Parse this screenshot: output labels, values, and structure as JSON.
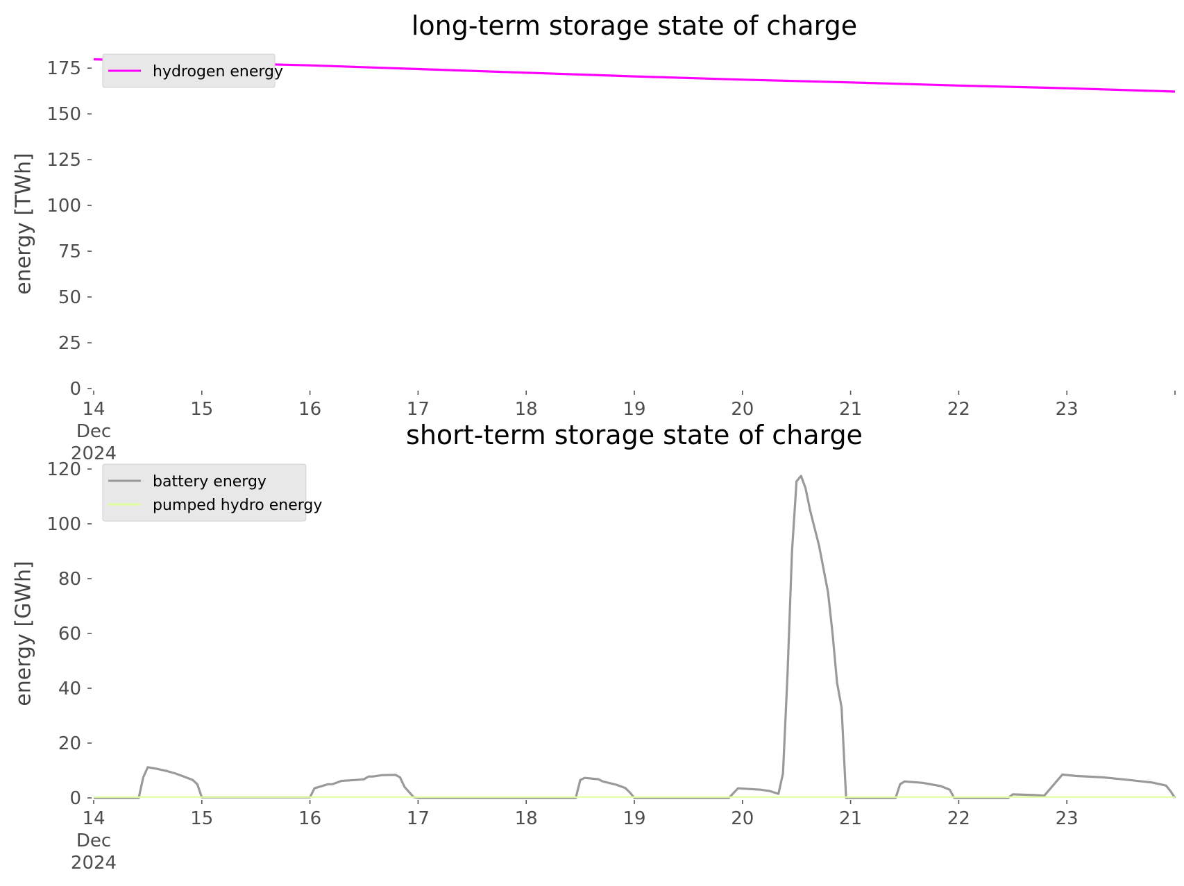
{
  "chart_data": [
    {
      "type": "line",
      "title": "long-term storage state of charge",
      "xlabel": "",
      "ylabel": "energy [TWh]",
      "xlim": [
        "2024-12-14",
        "2024-12-24"
      ],
      "ylim": [
        0,
        180
      ],
      "x_ticks": [
        {
          "date": "2024-12-14",
          "label": [
            "14",
            "Dec",
            "2024"
          ]
        },
        {
          "date": "2024-12-15",
          "label": [
            "15"
          ]
        },
        {
          "date": "2024-12-16",
          "label": [
            "16"
          ]
        },
        {
          "date": "2024-12-17",
          "label": [
            "17"
          ]
        },
        {
          "date": "2024-12-18",
          "label": [
            "18"
          ]
        },
        {
          "date": "2024-12-19",
          "label": [
            "19"
          ]
        },
        {
          "date": "2024-12-20",
          "label": [
            "20"
          ]
        },
        {
          "date": "2024-12-21",
          "label": [
            "21"
          ]
        },
        {
          "date": "2024-12-22",
          "label": [
            "22"
          ]
        },
        {
          "date": "2024-12-23",
          "label": [
            "23"
          ]
        },
        {
          "date": "2024-12-24",
          "label": []
        }
      ],
      "y_ticks": [
        {
          "value": 0,
          "label": "0"
        },
        {
          "value": 25,
          "label": "25"
        },
        {
          "value": 50,
          "label": "50"
        },
        {
          "value": 75,
          "label": "75"
        },
        {
          "value": 100,
          "label": "100"
        },
        {
          "value": 125,
          "label": "125"
        },
        {
          "value": 150,
          "label": "150"
        },
        {
          "value": 175,
          "label": "175"
        }
      ],
      "grid": false,
      "legend_position": "top-left",
      "series": [
        {
          "name": "hydrogen energy",
          "color": "#ff00ff",
          "points": [
            [
              "2024-12-14 00:00",
              179.8
            ],
            [
              "2024-12-15 00:00",
              178.0
            ],
            [
              "2024-12-16 00:00",
              176.5
            ],
            [
              "2024-12-17 00:00",
              174.5
            ],
            [
              "2024-12-18 00:00",
              172.5
            ],
            [
              "2024-12-19 00:00",
              170.5
            ],
            [
              "2024-12-20 00:00",
              168.7
            ],
            [
              "2024-12-21 00:00",
              167.2
            ],
            [
              "2024-12-22 00:00",
              165.5
            ],
            [
              "2024-12-23 00:00",
              164.0
            ],
            [
              "2024-12-24 00:00",
              162.2
            ]
          ]
        }
      ]
    },
    {
      "type": "line",
      "title": "short-term storage state of charge",
      "xlabel": "",
      "ylabel": "energy [GWh]",
      "xlim": [
        "2024-12-14",
        "2024-12-24"
      ],
      "ylim": [
        0,
        120
      ],
      "x_ticks": [
        {
          "date": "2024-12-14",
          "label": [
            "14",
            "Dec",
            "2024"
          ]
        },
        {
          "date": "2024-12-15",
          "label": [
            "15"
          ]
        },
        {
          "date": "2024-12-16",
          "label": [
            "16"
          ]
        },
        {
          "date": "2024-12-17",
          "label": [
            "17"
          ]
        },
        {
          "date": "2024-12-18",
          "label": [
            "18"
          ]
        },
        {
          "date": "2024-12-19",
          "label": [
            "19"
          ]
        },
        {
          "date": "2024-12-20",
          "label": [
            "20"
          ]
        },
        {
          "date": "2024-12-21",
          "label": [
            "21"
          ]
        },
        {
          "date": "2024-12-22",
          "label": [
            "22"
          ]
        },
        {
          "date": "2024-12-23",
          "label": [
            "23"
          ]
        }
      ],
      "y_ticks": [
        {
          "value": 0,
          "label": "0"
        },
        {
          "value": 20,
          "label": "20"
        },
        {
          "value": 40,
          "label": "40"
        },
        {
          "value": 60,
          "label": "60"
        },
        {
          "value": 80,
          "label": "80"
        },
        {
          "value": 100,
          "label": "100"
        },
        {
          "value": 120,
          "label": "120"
        }
      ],
      "grid": false,
      "legend_position": "top-left",
      "series": [
        {
          "name": "battery energy",
          "color": "#999999",
          "points": [
            [
              "2024-12-14 00:00",
              0
            ],
            [
              "2024-12-14 10:00",
              0
            ],
            [
              "2024-12-14 11:00",
              7.5
            ],
            [
              "2024-12-14 12:00",
              11.2
            ],
            [
              "2024-12-14 14:00",
              10.6
            ],
            [
              "2024-12-14 16:00",
              9.9
            ],
            [
              "2024-12-14 18:00",
              9.0
            ],
            [
              "2024-12-14 20:00",
              7.8
            ],
            [
              "2024-12-14 22:00",
              6.5
            ],
            [
              "2024-12-14 23:00",
              5.0
            ],
            [
              "2024-12-15 00:00",
              0.2
            ],
            [
              "2024-12-16 00:00",
              0.2
            ],
            [
              "2024-12-16 01:00",
              3.5
            ],
            [
              "2024-12-16 04:00",
              5.0
            ],
            [
              "2024-12-16 05:00",
              5.0
            ],
            [
              "2024-12-16 07:00",
              6.2
            ],
            [
              "2024-12-16 10:00",
              6.5
            ],
            [
              "2024-12-16 12:00",
              6.8
            ],
            [
              "2024-12-16 13:00",
              7.8
            ],
            [
              "2024-12-16 14:00",
              7.8
            ],
            [
              "2024-12-16 16:00",
              8.3
            ],
            [
              "2024-12-16 19:00",
              8.4
            ],
            [
              "2024-12-16 20:00",
              7.5
            ],
            [
              "2024-12-16 21:00",
              4.0
            ],
            [
              "2024-12-16 23:00",
              0.3
            ],
            [
              "2024-12-17 00:00",
              0
            ],
            [
              "2024-12-18 11:00",
              0
            ],
            [
              "2024-12-18 12:00",
              6.5
            ],
            [
              "2024-12-18 13:00",
              7.3
            ],
            [
              "2024-12-18 16:00",
              6.8
            ],
            [
              "2024-12-18 17:00",
              6.0
            ],
            [
              "2024-12-18 20:00",
              4.8
            ],
            [
              "2024-12-18 22:00",
              3.6
            ],
            [
              "2024-12-18 23:00",
              2.0
            ],
            [
              "2024-12-19 00:00",
              0
            ],
            [
              "2024-12-19 21:00",
              0
            ],
            [
              "2024-12-19 23:00",
              3.5
            ],
            [
              "2024-12-20 04:00",
              3.0
            ],
            [
              "2024-12-20 06:00",
              2.5
            ],
            [
              "2024-12-20 08:00",
              1.5
            ],
            [
              "2024-12-20 09:00",
              9.0
            ],
            [
              "2024-12-20 10:00",
              45.0
            ],
            [
              "2024-12-20 11:00",
              90.0
            ],
            [
              "2024-12-20 12:00",
              115.5
            ],
            [
              "2024-12-20 13:00",
              117.5
            ],
            [
              "2024-12-20 14:00",
              113.0
            ],
            [
              "2024-12-20 15:00",
              105.0
            ],
            [
              "2024-12-20 17:00",
              92.0
            ],
            [
              "2024-12-20 19:00",
              75.0
            ],
            [
              "2024-12-20 20:00",
              60.0
            ],
            [
              "2024-12-20 21:00",
              42.0
            ],
            [
              "2024-12-20 22:00",
              33.0
            ],
            [
              "2024-12-20 23:00",
              0
            ],
            [
              "2024-12-21 10:00",
              0
            ],
            [
              "2024-12-21 11:00",
              5.0
            ],
            [
              "2024-12-21 12:00",
              6.0
            ],
            [
              "2024-12-21 16:00",
              5.5
            ],
            [
              "2024-12-21 20:00",
              4.3
            ],
            [
              "2024-12-21 22:00",
              3.0
            ],
            [
              "2024-12-21 23:00",
              0
            ],
            [
              "2024-12-22 11:00",
              0
            ],
            [
              "2024-12-22 12:00",
              1.3
            ],
            [
              "2024-12-22 17:00",
              1.0
            ],
            [
              "2024-12-22 19:00",
              0.8
            ],
            [
              "2024-12-22 23:00",
              8.5
            ],
            [
              "2024-12-23 02:00",
              8.0
            ],
            [
              "2024-12-23 08:00",
              7.5
            ],
            [
              "2024-12-23 14:00",
              6.5
            ],
            [
              "2024-12-23 19:00",
              5.6
            ],
            [
              "2024-12-23 22:00",
              4.5
            ],
            [
              "2024-12-23 23:00",
              2.5
            ],
            [
              "2024-12-24 00:00",
              0
            ]
          ]
        },
        {
          "name": "pumped hydro energy",
          "color": "#dfff9e",
          "points": [
            [
              "2024-12-14 00:00",
              0.3
            ],
            [
              "2024-12-24 00:00",
              0.3
            ]
          ]
        }
      ]
    }
  ]
}
